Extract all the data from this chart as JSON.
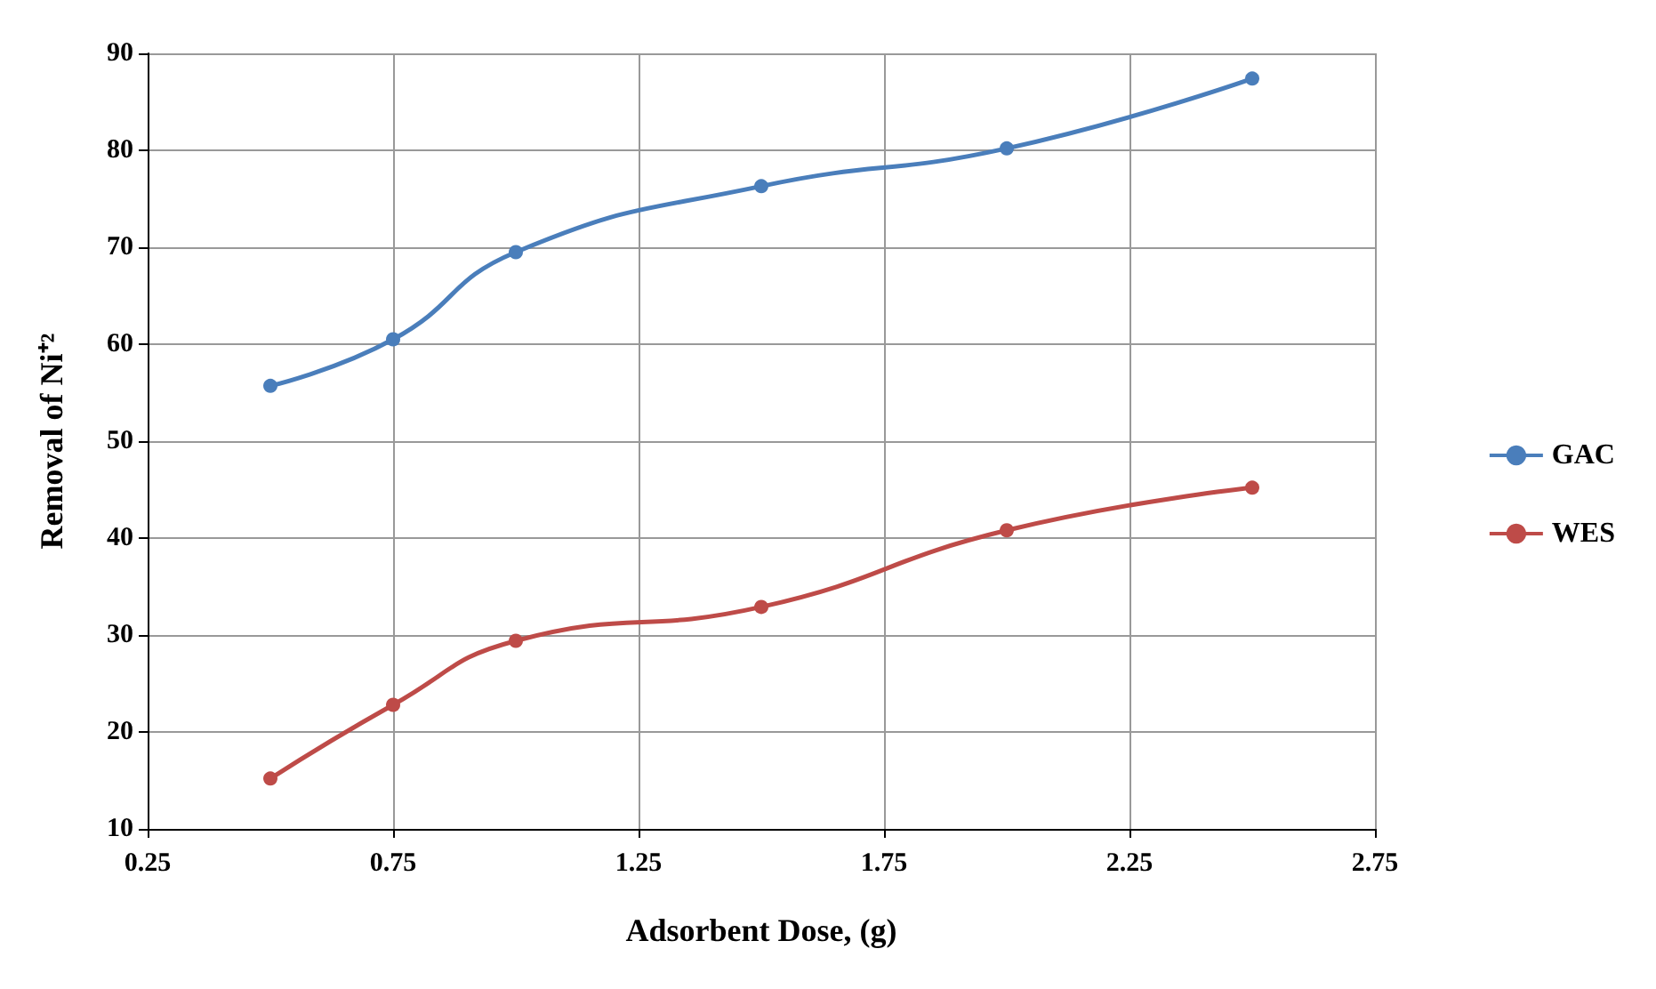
{
  "chart_data": {
    "type": "line",
    "xlabel": "Adsorbent Dose, (g)",
    "ylabel": "Removal of Ni⁺²",
    "x": [
      0.5,
      0.75,
      1.0,
      1.5,
      2.0,
      2.5
    ],
    "series": [
      {
        "name": "GAC",
        "color": "#4a7ebb",
        "values": [
          55.7,
          60.5,
          69.5,
          76.3,
          80.2,
          87.4
        ]
      },
      {
        "name": "WES",
        "color": "#be4b48",
        "values": [
          15.2,
          22.8,
          29.4,
          32.9,
          40.8,
          45.2
        ]
      }
    ],
    "xlim": [
      0.25,
      2.75
    ],
    "xticks": [
      0.25,
      0.75,
      1.25,
      1.75,
      2.25,
      2.75
    ],
    "ylim": [
      10,
      90
    ],
    "yticks": [
      10,
      20,
      30,
      40,
      50,
      60,
      70,
      80,
      90
    ],
    "grid": true,
    "legend": "right",
    "marker": "circle",
    "line_style": "solid"
  }
}
